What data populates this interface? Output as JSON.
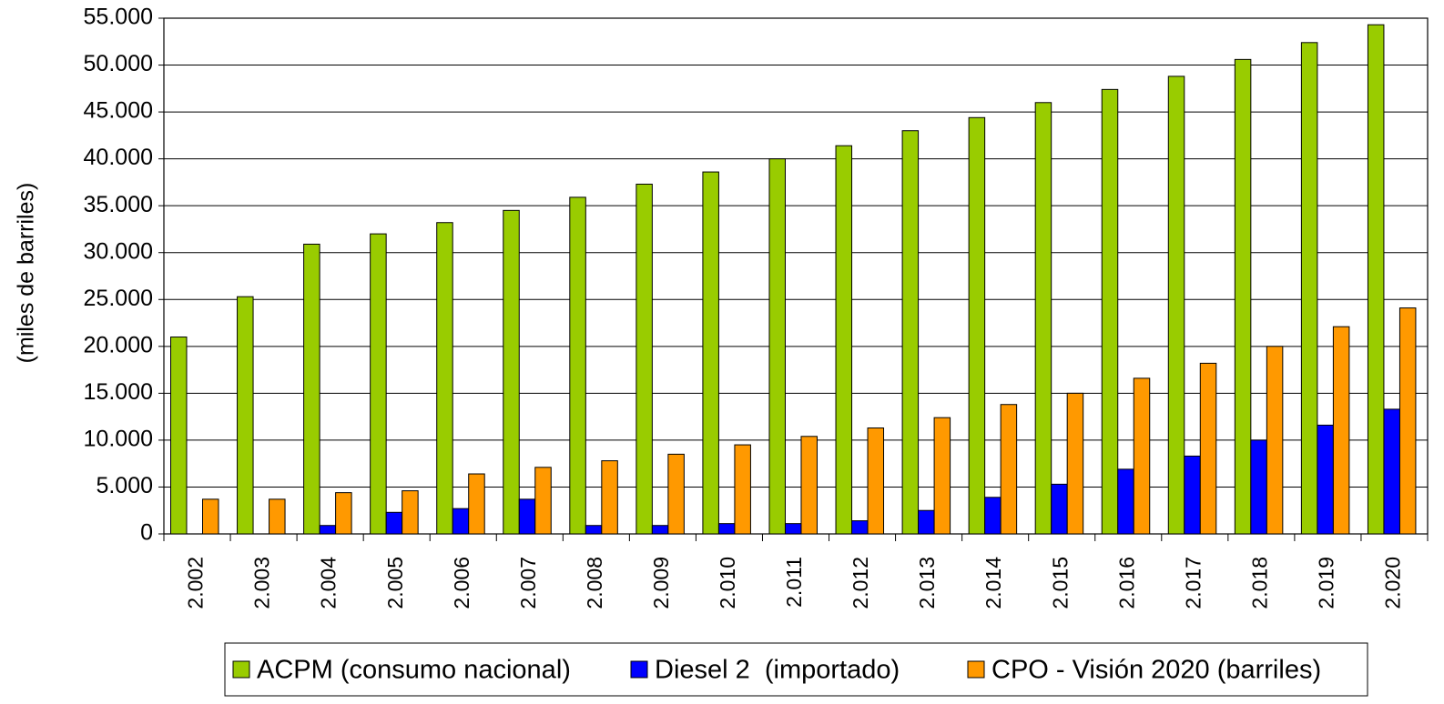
{
  "chart_data": {
    "type": "bar",
    "y_axis_label": "(miles de barriles)",
    "categories": [
      "2.002",
      "2.003",
      "2.004",
      "2.005",
      "2.006",
      "2.007",
      "2.008",
      "2.009",
      "2.010",
      "2.011",
      "2.012",
      "2.013",
      "2.014",
      "2.015",
      "2.016",
      "2.017",
      "2.018",
      "2.019",
      "2.020"
    ],
    "series": [
      {
        "name": "ACPM (consumo nacional)",
        "color": "#99cc00",
        "values": [
          21000,
          25300,
          30900,
          32000,
          33200,
          34500,
          35900,
          37300,
          38600,
          40000,
          41400,
          43000,
          44400,
          46000,
          47400,
          48800,
          50600,
          52400,
          54300
        ]
      },
      {
        "name": "Diesel 2  (importado)",
        "color": "#0000ff",
        "values": [
          0,
          0,
          900,
          2300,
          2700,
          3700,
          900,
          900,
          1100,
          1100,
          1400,
          2500,
          3900,
          5300,
          6900,
          8300,
          10000,
          11600,
          13300
        ]
      },
      {
        "name": "CPO - Visión 2020 (barriles)",
        "color": "#ff9900",
        "values": [
          3700,
          3700,
          4400,
          4600,
          6400,
          7100,
          7800,
          8500,
          9500,
          10400,
          11300,
          12400,
          13800,
          15000,
          16600,
          18200,
          20000,
          22100,
          24100
        ]
      }
    ],
    "ylim": [
      0,
      55000
    ],
    "yticks": [
      0,
      {
        "value": 5000,
        "label": "5.000"
      },
      {
        "value": 10000,
        "label": "10.000"
      },
      {
        "value": 15000,
        "label": "15.000"
      },
      {
        "value": 20000,
        "label": "20.000"
      },
      {
        "value": 25000,
        "label": "25.000"
      },
      {
        "value": 30000,
        "label": "30.000"
      },
      {
        "value": 35000,
        "label": "35.000"
      },
      {
        "value": 40000,
        "label": "40.000"
      },
      {
        "value": 45000,
        "label": "45.000"
      },
      {
        "value": 50000,
        "label": "50.000"
      },
      {
        "value": 55000,
        "label": "55.000"
      }
    ],
    "grid": true,
    "legend": "bottom"
  }
}
